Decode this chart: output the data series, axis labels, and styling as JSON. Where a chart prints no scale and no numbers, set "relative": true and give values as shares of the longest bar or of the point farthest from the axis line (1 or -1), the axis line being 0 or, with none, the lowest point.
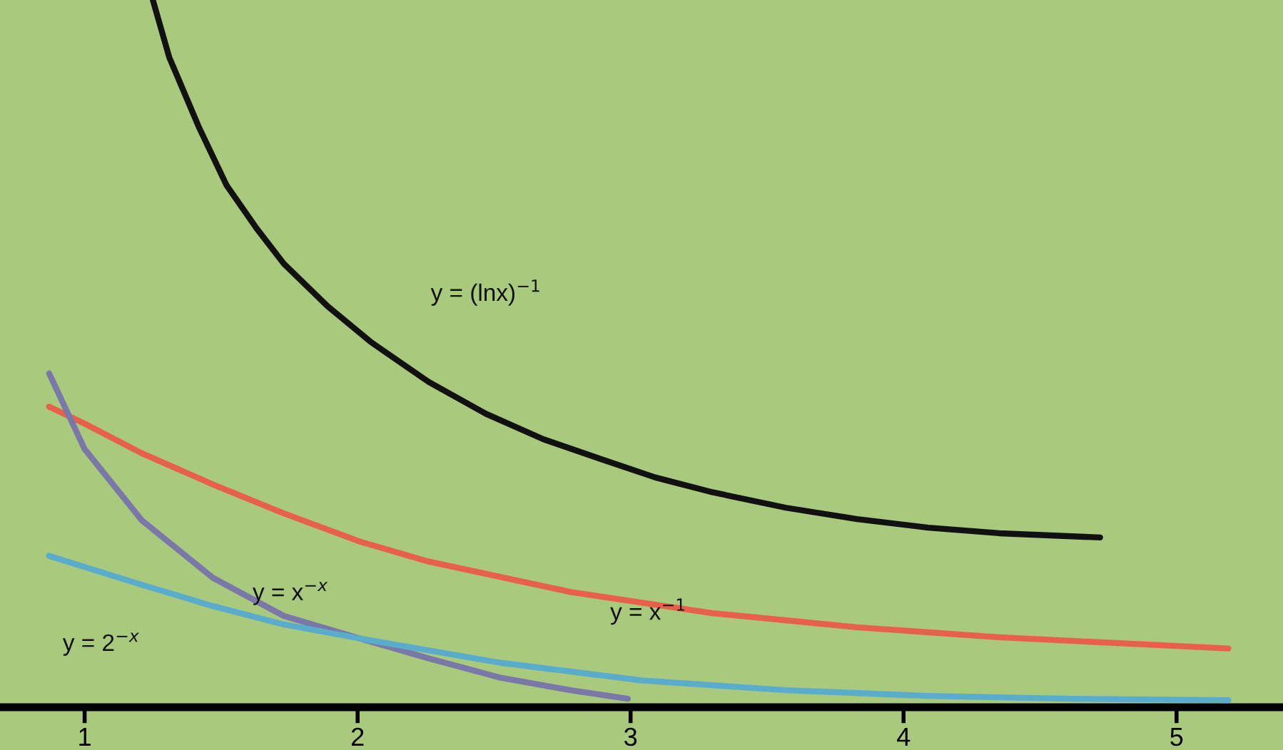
{
  "chart_data": {
    "type": "line",
    "relative": true,
    "xlim": [
      0.69,
      5.39
    ],
    "xticks": [
      1,
      2,
      3,
      4,
      5
    ],
    "grid": false,
    "legend": false,
    "marker": "none",
    "line_style": "solid",
    "series": [
      {
        "name": "y = (lnx)$^{−1}$",
        "color": "#111111",
        "x": [
          1.25,
          1.31,
          1.42,
          1.52,
          1.63,
          1.73,
          1.89,
          2.05,
          2.26,
          2.47,
          2.68,
          2.89,
          3.09,
          3.3,
          3.57,
          3.83,
          4.09,
          4.35,
          4.72
        ],
        "values": [
          1.0,
          0.919,
          0.819,
          0.738,
          0.677,
          0.627,
          0.567,
          0.516,
          0.46,
          0.415,
          0.379,
          0.351,
          0.325,
          0.304,
          0.282,
          0.266,
          0.254,
          0.246,
          0.24
        ]
      },
      {
        "name": "y = x$^{−1}$",
        "color": "#e8604a",
        "x": [
          0.87,
          1.0,
          1.21,
          1.47,
          1.73,
          2.01,
          2.26,
          2.78,
          3.3,
          3.83,
          4.35,
          4.87,
          5.19
        ],
        "values": [
          0.425,
          0.401,
          0.359,
          0.315,
          0.274,
          0.234,
          0.206,
          0.163,
          0.133,
          0.113,
          0.099,
          0.089,
          0.083
        ]
      },
      {
        "name": "y = x$^{−x}$",
        "color": "#7a78a8",
        "x": [
          0.87,
          1.0,
          1.21,
          1.47,
          1.73,
          2.01,
          2.26,
          2.52,
          2.78,
          2.99
        ],
        "values": [
          0.472,
          0.365,
          0.264,
          0.183,
          0.129,
          0.097,
          0.069,
          0.042,
          0.024,
          0.012
        ]
      },
      {
        "name": "y = 2$^{−x}$",
        "color": "#5aaccc",
        "x": [
          0.87,
          1.21,
          1.47,
          1.73,
          2.01,
          2.52,
          3.04,
          3.57,
          4.09,
          4.61,
          5.19
        ],
        "values": [
          0.214,
          0.173,
          0.143,
          0.117,
          0.097,
          0.063,
          0.038,
          0.024,
          0.016,
          0.012,
          0.01
        ]
      }
    ]
  }
}
